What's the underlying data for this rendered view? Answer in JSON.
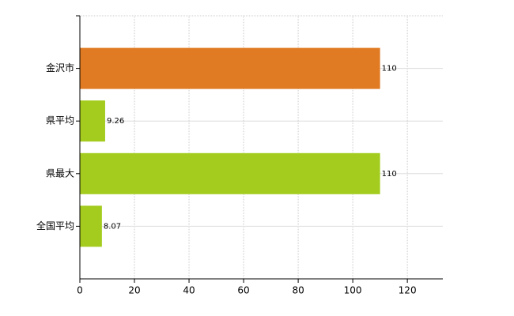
{
  "chart_data": {
    "type": "bar",
    "orientation": "horizontal",
    "categories": [
      "金沢市",
      "県平均",
      "県最大",
      "全国平均"
    ],
    "values": [
      110,
      9.26,
      110,
      8.07
    ],
    "colors": [
      "#e07b24",
      "#a3cc1e",
      "#a3cc1e",
      "#a3cc1e"
    ],
    "xlim": [
      0,
      133
    ],
    "xticks": [
      0,
      20,
      40,
      60,
      80,
      100,
      120
    ],
    "grid": true
  }
}
